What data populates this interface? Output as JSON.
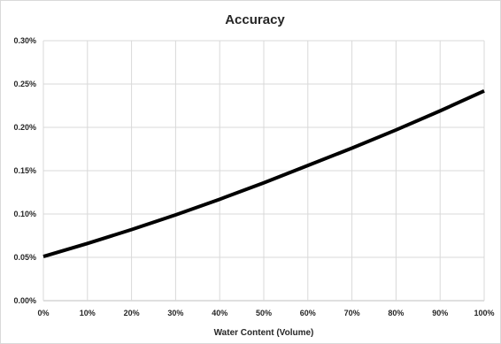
{
  "chart_data": {
    "type": "line",
    "title": "Accuracy",
    "xlabel": "Water Content (Volume)",
    "ylabel": "",
    "x_ticks": [
      "0%",
      "10%",
      "20%",
      "30%",
      "40%",
      "50%",
      "60%",
      "70%",
      "80%",
      "90%",
      "100%"
    ],
    "y_ticks": [
      "0.00%",
      "0.05%",
      "0.10%",
      "0.15%",
      "0.20%",
      "0.25%",
      "0.30%"
    ],
    "xlim": [
      0,
      100
    ],
    "ylim": [
      0,
      0.3
    ],
    "grid": true,
    "legend": "none",
    "colors": {
      "line": "#000000",
      "grid": "#d9d9d9",
      "axis": "#bfbfbf"
    },
    "series": [
      {
        "x": [
          0,
          10,
          20,
          30,
          40,
          50,
          60,
          70,
          80,
          90,
          100
        ],
        "y": [
          0.051,
          0.066,
          0.082,
          0.099,
          0.117,
          0.136,
          0.156,
          0.176,
          0.197,
          0.219,
          0.242
        ]
      }
    ]
  }
}
